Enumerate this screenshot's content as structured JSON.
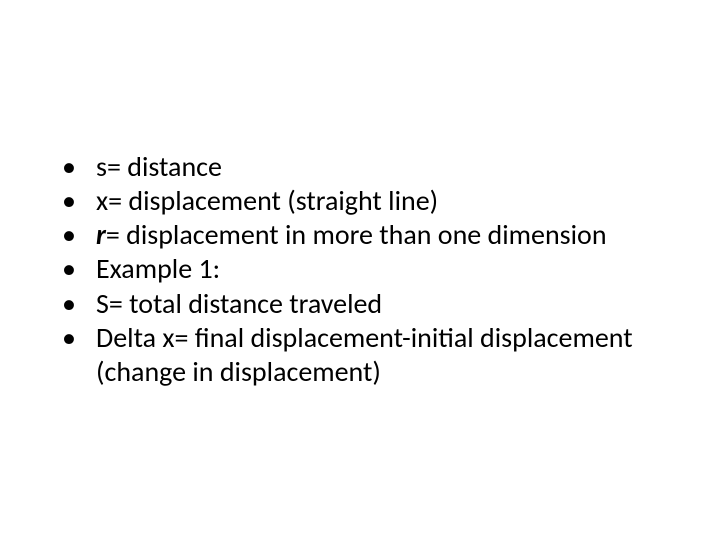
{
  "slide": {
    "background_color": "#ffffff",
    "text_color": "#000000",
    "font_family": "Calibri, 'Segoe UI', Arial, sans-serif",
    "bullet_fontsize": 28,
    "line_height": 1.22,
    "bullets": [
      {
        "prefix": "",
        "text": "s= distance"
      },
      {
        "prefix": "",
        "text": "x= displacement (straight line)"
      },
      {
        "prefix": "r",
        "text": "= displacement in more than one dimension"
      },
      {
        "prefix": "",
        "text": "Example 1:"
      },
      {
        "prefix": "",
        "text": "S= total distance traveled"
      },
      {
        "prefix": "",
        "text": "Delta x= final displacement-initial displacement (change in displacement)"
      }
    ]
  }
}
